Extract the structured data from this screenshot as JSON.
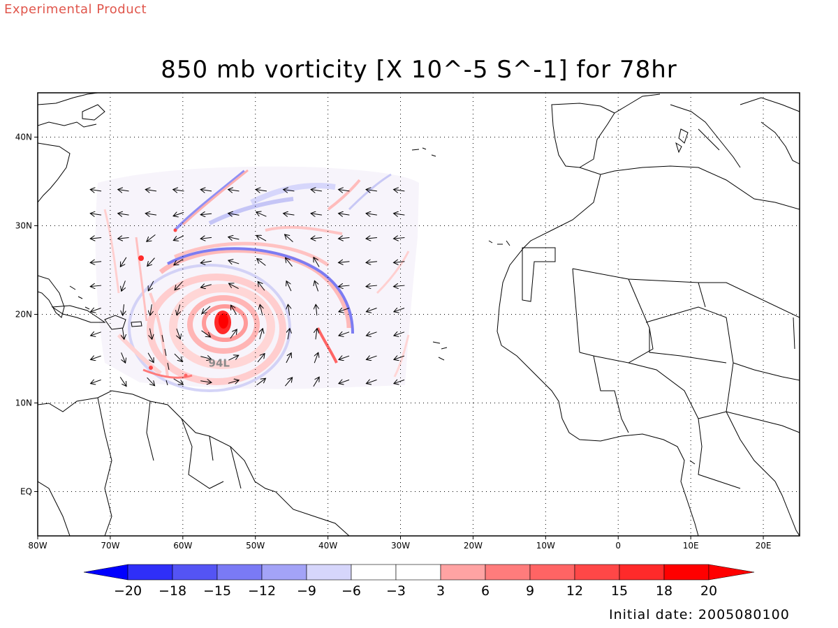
{
  "header": {
    "product_label": "Experimental Product",
    "title": "850 mb vorticity [X 10^-5 S^-1] for 78hr",
    "initial_date": "Initial date: 2005080100"
  },
  "map": {
    "lon_range": [
      -80,
      25
    ],
    "lat_range": [
      -5,
      45
    ],
    "lon_ticks": [
      {
        "value": -80,
        "label": "80W"
      },
      {
        "value": -70,
        "label": "70W"
      },
      {
        "value": -60,
        "label": "60W"
      },
      {
        "value": -50,
        "label": "50W"
      },
      {
        "value": -40,
        "label": "40W"
      },
      {
        "value": -30,
        "label": "30W"
      },
      {
        "value": -20,
        "label": "20W"
      },
      {
        "value": -10,
        "label": "10W"
      },
      {
        "value": 0,
        "label": "0"
      },
      {
        "value": 10,
        "label": "10E"
      },
      {
        "value": 20,
        "label": "20E"
      }
    ],
    "lat_ticks": [
      {
        "value": 40,
        "label": "40N"
      },
      {
        "value": 30,
        "label": "30N"
      },
      {
        "value": 20,
        "label": "20N"
      },
      {
        "value": 10,
        "label": "10N"
      },
      {
        "value": 0,
        "label": "EQ"
      }
    ],
    "grid": "dotted",
    "storm": {
      "label": "94L",
      "lon": -55.5,
      "lat": 19.3,
      "label_lon": -55,
      "label_lat": 14.5
    }
  },
  "colorbar": {
    "labels": [
      "-20",
      "-18",
      "-15",
      "-12",
      "-9",
      "-6",
      "-3",
      "3",
      "6",
      "9",
      "12",
      "15",
      "18",
      "20"
    ],
    "colors": [
      "#0000ff",
      "#2f2ff8",
      "#5454f4",
      "#7a7af5",
      "#a3a3f7",
      "#d6d6fb",
      "#ffffff",
      "#ffd6d6",
      "#ffa3a3",
      "#ff7c7c",
      "#ff6464",
      "#ff4747",
      "#ff2a2a",
      "#ff0000"
    ],
    "under_color": "#0000ff",
    "over_color": "#ff0000"
  }
}
